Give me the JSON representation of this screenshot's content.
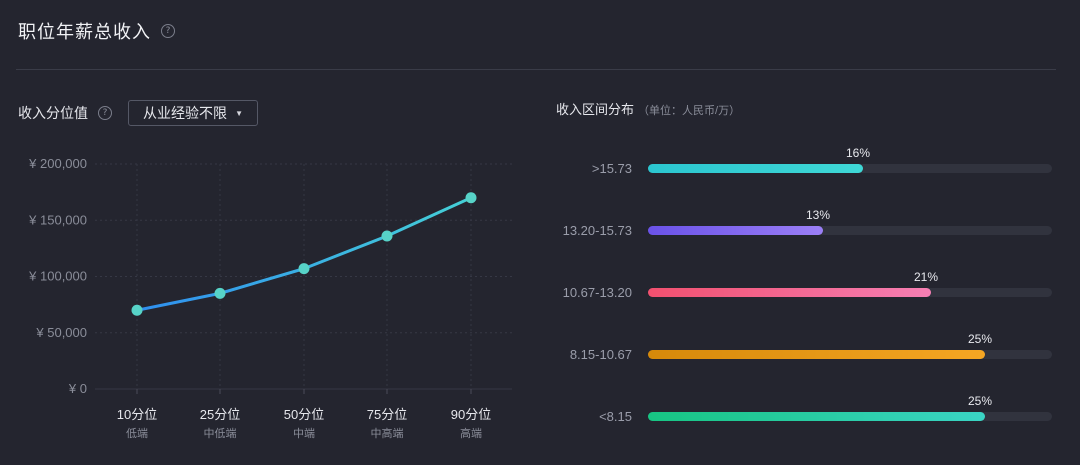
{
  "header": {
    "title": "职位年薪总收入"
  },
  "left_panel": {
    "title": "收入分位值",
    "filter": {
      "selected": "从业经验不限"
    }
  },
  "right_panel": {
    "title": "收入区间分布",
    "unit": "（单位：人民币/万）"
  },
  "chart_data": [
    {
      "type": "line",
      "categories": [
        "10分位",
        "25分位",
        "50分位",
        "75分位",
        "90分位"
      ],
      "sub_categories": [
        "低端",
        "中低端",
        "中端",
        "中高端",
        "高端"
      ],
      "values": [
        70000,
        85000,
        107000,
        136000,
        170000
      ],
      "yticks": [
        0,
        50000,
        100000,
        150000,
        200000
      ],
      "ytick_labels": [
        "¥ 0",
        "¥ 50,000",
        "¥ 100,000",
        "¥ 150,000",
        "¥ 200,000"
      ],
      "ylim": [
        0,
        200000
      ],
      "grid": true,
      "colors": {
        "line_start": "#2f8ff0",
        "line_end": "#45d0d6",
        "point": "#57d3c8"
      }
    },
    {
      "type": "bar",
      "orientation": "horizontal",
      "categories": [
        ">15.73",
        "13.20-15.73",
        "10.67-13.20",
        "8.15-10.67",
        "<8.15"
      ],
      "values": [
        16,
        13,
        21,
        25,
        25
      ],
      "value_labels": [
        "16%",
        "13%",
        "21%",
        "25%",
        "25%"
      ],
      "unit": "%",
      "colors": [
        [
          "#2bc6d0",
          "#3fd8d6"
        ],
        [
          "#6a52e8",
          "#9b7ff6"
        ],
        [
          "#f2506f",
          "#f67fb4"
        ],
        [
          "#d6890a",
          "#f5a623"
        ],
        [
          "#17c583",
          "#3ad4c4"
        ]
      ]
    }
  ]
}
